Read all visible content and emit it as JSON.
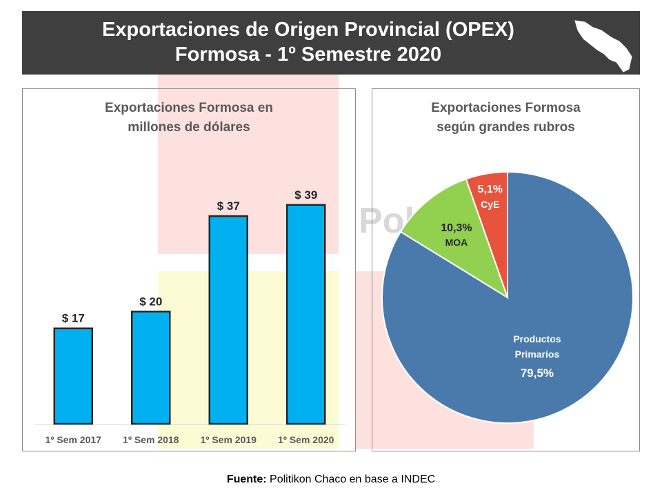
{
  "header": {
    "title_line1": "Exportaciones de Origen Provincial (OPEX)",
    "title_line2": "Formosa - 1º Semestre 2020",
    "icon": "formosa-map-icon"
  },
  "watermark": {
    "text": "Pol"
  },
  "colors": {
    "header_bg": "#3f3f3f",
    "bar": "#00b0f0",
    "pie_primarios": "#4a7aab",
    "pie_moa": "#92d050",
    "pie_cye": "#e8533d"
  },
  "bar_panel": {
    "title_line1": "Exportaciones Formosa en",
    "title_line2": "millones de dólares"
  },
  "pie_panel": {
    "title_line1": "Exportaciones Formosa",
    "title_line2": "según grandes rubros"
  },
  "chart_data": [
    {
      "type": "bar",
      "title": "Exportaciones Formosa en millones de dólares",
      "categories": [
        "1º Sem 2017",
        "1º Sem 2018",
        "1º Sem 2019",
        "1º Sem 2020"
      ],
      "values": [
        17,
        20,
        37,
        39
      ],
      "data_labels": [
        "$ 17",
        "$ 20",
        "$ 37",
        "$ 39"
      ],
      "ylim": [
        0,
        45
      ],
      "grid": false,
      "xlabel": "",
      "ylabel": ""
    },
    {
      "type": "pie",
      "title": "Exportaciones Formosa según grandes rubros",
      "slices": [
        {
          "name": "CyE",
          "value": 5.1,
          "label": "5,1%"
        },
        {
          "name": "Productos Primarios",
          "value": 79.5,
          "label": "79,5%"
        },
        {
          "name": "MOA",
          "value": 10.3,
          "label": "10,3%"
        }
      ],
      "legend": "none"
    }
  ],
  "pie_labels": {
    "primarios_line1": "Productos",
    "primarios_line2": "Primarios"
  },
  "footer": {
    "label": "Fuente:",
    "text": " Politikon Chaco en base a INDEC"
  }
}
